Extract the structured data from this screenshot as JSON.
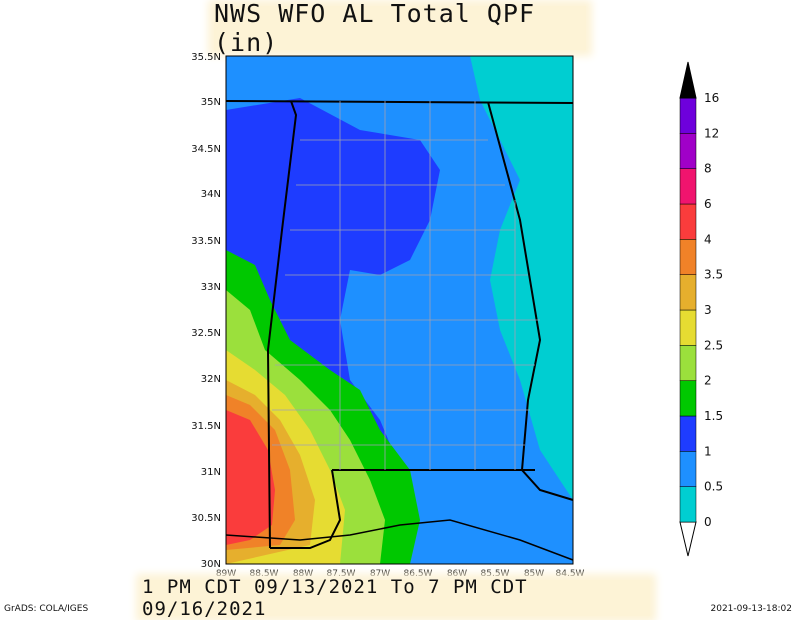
{
  "title": "NWS WFO AL Total QPF (in)",
  "valid_period": "1 PM CDT 09/13/2021 To 7 PM CDT 09/16/2021",
  "credit": "GrADS: COLA/IGES",
  "timestamp": "2021-09-13-18:02",
  "map": {
    "lat_labels": [
      "35.5N",
      "35N",
      "34.5N",
      "34N",
      "33.5N",
      "33N",
      "32.5N",
      "32N",
      "31.5N",
      "31N",
      "30.5N",
      "30N"
    ],
    "lon_labels": [
      "89W",
      "88.5W",
      "88W",
      "87.5W",
      "87W",
      "86.5W",
      "86W",
      "85.5W",
      "85W",
      "84.5W"
    ],
    "region": "Alabama"
  },
  "legend": {
    "levels": [
      "0",
      "0.5",
      "1",
      "1.5",
      "2",
      "2.5",
      "3",
      "3.5",
      "4",
      "6",
      "8",
      "12",
      "16"
    ],
    "colors": [
      "#00ced1",
      "#1e90ff",
      "#1e3cff",
      "#00c800",
      "#9be03c",
      "#e6dc32",
      "#e6af2d",
      "#f08228",
      "#fa3c3c",
      "#f0146e",
      "#a000c8",
      "#6e00dc",
      "#000000"
    ]
  },
  "colors": {
    "band_0_5": "#1e90ff",
    "band_1": "#1e3cff",
    "band_0": "#00ced1",
    "band_1_5": "#00c800",
    "band_2": "#9be03c",
    "band_2_5": "#e6dc32",
    "band_3": "#e6af2d",
    "band_3_5": "#f08228",
    "band_4": "#fa3c3c"
  }
}
